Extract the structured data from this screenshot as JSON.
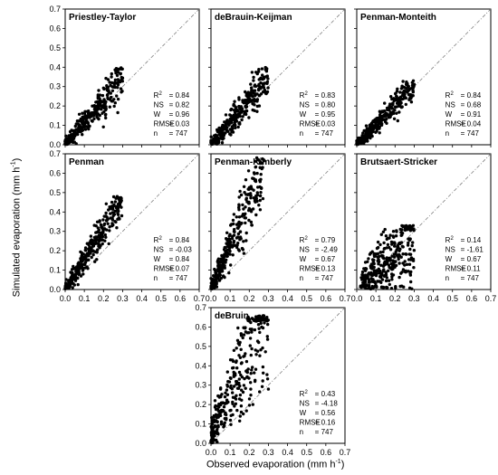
{
  "figure": {
    "ylabel": "Simulated evaporation (mm h",
    "ylabel_sup": "-1",
    "ylabel_tail": ")",
    "xlabel": "Observed evaporation (mm h",
    "xlabel_sup": "-1",
    "xlabel_tail": ")",
    "colors": {
      "points": "#000000",
      "one_to_one_line": "#808080",
      "frame": "#000000"
    }
  },
  "chart_data": [
    {
      "type": "scatter",
      "title": "Priestley-Taylor",
      "xlim": [
        0,
        0.7
      ],
      "ylim": [
        0,
        0.7
      ],
      "xticks": [
        "0.0",
        "0.1",
        "0.2",
        "0.3",
        "0.4",
        "0.5",
        "0.6",
        "0.7"
      ],
      "yticks": [
        "0.0",
        "0.1",
        "0.2",
        "0.3",
        "0.4",
        "0.5",
        "0.6",
        "0.7"
      ],
      "show_xticks": false,
      "show_yticks": true,
      "stats": [
        {
          "label": "R",
          "sup": "2",
          "value": "= 0.84"
        },
        {
          "label": "NS",
          "sup": "",
          "value": "= 0.82"
        },
        {
          "label": "W",
          "sup": "",
          "value": "= 0.96"
        },
        {
          "label": "RMSE",
          "sup": "",
          "value": "= 0.03"
        },
        {
          "label": "n",
          "sup": "",
          "value": "= 747"
        }
      ],
      "trend": {
        "slope": 1.15,
        "spread": 0.035,
        "xmax": 0.3,
        "yclip": 0.4
      },
      "n": 747
    },
    {
      "type": "scatter",
      "title": "deBrauin-Keijman",
      "xlim": [
        0,
        0.7
      ],
      "ylim": [
        0,
        0.7
      ],
      "xticks": [
        "0.0",
        "0.1",
        "0.2",
        "0.3",
        "0.4",
        "0.5",
        "0.6",
        "0.7"
      ],
      "yticks": [
        "0.0",
        "0.1",
        "0.2",
        "0.3",
        "0.4",
        "0.5",
        "0.6",
        "0.7"
      ],
      "show_xticks": false,
      "show_yticks": false,
      "stats": [
        {
          "label": "R",
          "sup": "2",
          "value": "= 0.83"
        },
        {
          "label": "NS",
          "sup": "",
          "value": "= 0.80"
        },
        {
          "label": "W",
          "sup": "",
          "value": "= 0.95"
        },
        {
          "label": "RMSE",
          "sup": "",
          "value": "= 0.03"
        },
        {
          "label": "n",
          "sup": "",
          "value": "= 747"
        }
      ],
      "trend": {
        "slope": 1.15,
        "spread": 0.037,
        "xmax": 0.3,
        "yclip": 0.4
      },
      "n": 747
    },
    {
      "type": "scatter",
      "title": "Penman-Monteith",
      "xlim": [
        0,
        0.7
      ],
      "ylim": [
        0,
        0.7
      ],
      "xticks": [
        "0.0",
        "0.1",
        "0.2",
        "0.3",
        "0.4",
        "0.5",
        "0.6",
        "0.7"
      ],
      "yticks": [
        "0.0",
        "0.1",
        "0.2",
        "0.3",
        "0.4",
        "0.5",
        "0.6",
        "0.7"
      ],
      "show_xticks": false,
      "show_yticks": false,
      "stats": [
        {
          "label": "R",
          "sup": "2",
          "value": "= 0.84"
        },
        {
          "label": "NS",
          "sup": "",
          "value": "= 0.68"
        },
        {
          "label": "W",
          "sup": "",
          "value": "= 0.91"
        },
        {
          "label": "RMSE",
          "sup": "",
          "value": "= 0.04"
        },
        {
          "label": "n",
          "sup": "",
          "value": "= 747"
        }
      ],
      "trend": {
        "slope": 1.05,
        "spread": 0.03,
        "xmax": 0.3,
        "yclip": 0.33
      },
      "n": 747
    },
    {
      "type": "scatter",
      "title": "Penman",
      "xlim": [
        0,
        0.7
      ],
      "ylim": [
        0,
        0.7
      ],
      "xticks": [
        "0.0",
        "0.1",
        "0.2",
        "0.3",
        "0.4",
        "0.5",
        "0.6",
        "0.7"
      ],
      "yticks": [
        "0.0",
        "0.1",
        "0.2",
        "0.3",
        "0.4",
        "0.5",
        "0.6",
        "0.7"
      ],
      "show_xticks": true,
      "show_yticks": true,
      "stats": [
        {
          "label": "R",
          "sup": "2",
          "value": "= 0.84"
        },
        {
          "label": "NS",
          "sup": "",
          "value": "= -0.03"
        },
        {
          "label": "W",
          "sup": "",
          "value": "= 0.84"
        },
        {
          "label": "RMSE",
          "sup": "",
          "value": "= 0.07"
        },
        {
          "label": "n",
          "sup": "",
          "value": "= 747"
        }
      ],
      "trend": {
        "slope": 1.55,
        "spread": 0.04,
        "xmax": 0.3,
        "yclip": 0.48
      },
      "n": 747
    },
    {
      "type": "scatter",
      "title": "Penman-Kimberly",
      "xlim": [
        0,
        0.7
      ],
      "ylim": [
        0,
        0.7
      ],
      "xticks": [
        "0.0",
        "0.1",
        "0.2",
        "0.3",
        "0.4",
        "0.5",
        "0.6",
        "0.7"
      ],
      "yticks": [
        "0.0",
        "0.1",
        "0.2",
        "0.3",
        "0.4",
        "0.5",
        "0.6",
        "0.7"
      ],
      "show_xticks": true,
      "show_yticks": false,
      "stats": [
        {
          "label": "R",
          "sup": "2",
          "value": "= 0.79"
        },
        {
          "label": "NS",
          "sup": "",
          "value": "= -2.49"
        },
        {
          "label": "W",
          "sup": "",
          "value": "= 0.67"
        },
        {
          "label": "RMSE",
          "sup": "",
          "value": "= 0.13"
        },
        {
          "label": "n",
          "sup": "",
          "value": "= 747"
        }
      ],
      "trend": {
        "slope": 2.35,
        "spread": 0.06,
        "xmax": 0.28,
        "yclip": 0.68
      },
      "n": 747
    },
    {
      "type": "scatter",
      "title": "Brutsaert-Stricker",
      "xlim": [
        0,
        0.7
      ],
      "ylim": [
        0,
        0.7
      ],
      "xticks": [
        "0.0",
        "0.1",
        "0.2",
        "0.3",
        "0.4",
        "0.5",
        "0.6",
        "0.7"
      ],
      "yticks": [
        "0.0",
        "0.1",
        "0.2",
        "0.3",
        "0.4",
        "0.5",
        "0.6",
        "0.7"
      ],
      "show_xticks": true,
      "show_yticks": false,
      "stats": [
        {
          "label": "R",
          "sup": "2",
          "value": "= 0.14"
        },
        {
          "label": "NS",
          "sup": "",
          "value": "= -1.61"
        },
        {
          "label": "W",
          "sup": "",
          "value": "= 0.67"
        },
        {
          "label": "RMSE",
          "sup": "",
          "value": "= 0.11"
        },
        {
          "label": "n",
          "sup": "",
          "value": "= 747"
        }
      ],
      "trend": {
        "slope": 0.9,
        "spread": 0.09,
        "xmax": 0.3,
        "yclip": 0.33
      },
      "n": 747
    },
    {
      "type": "scatter",
      "title": "deBruin",
      "xlim": [
        0,
        0.7
      ],
      "ylim": [
        0,
        0.7
      ],
      "xticks": [
        "0.0",
        "0.1",
        "0.2",
        "0.3",
        "0.4",
        "0.5",
        "0.6",
        "0.7"
      ],
      "yticks": [
        "0.0",
        "0.1",
        "0.2",
        "0.3",
        "0.4",
        "0.5",
        "0.6",
        "0.7"
      ],
      "show_xticks": true,
      "show_yticks": true,
      "stats": [
        {
          "label": "R",
          "sup": "2",
          "value": "= 0.43"
        },
        {
          "label": "NS",
          "sup": "",
          "value": "= -4.18"
        },
        {
          "label": "W",
          "sup": "",
          "value": "= 0.56"
        },
        {
          "label": "RMSE",
          "sup": "",
          "value": "= 0.16"
        },
        {
          "label": "n",
          "sup": "",
          "value": "= 747"
        }
      ],
      "trend": {
        "slope": 1.9,
        "spread": 0.14,
        "xmax": 0.3,
        "yclip": 0.66
      },
      "n": 747
    }
  ]
}
